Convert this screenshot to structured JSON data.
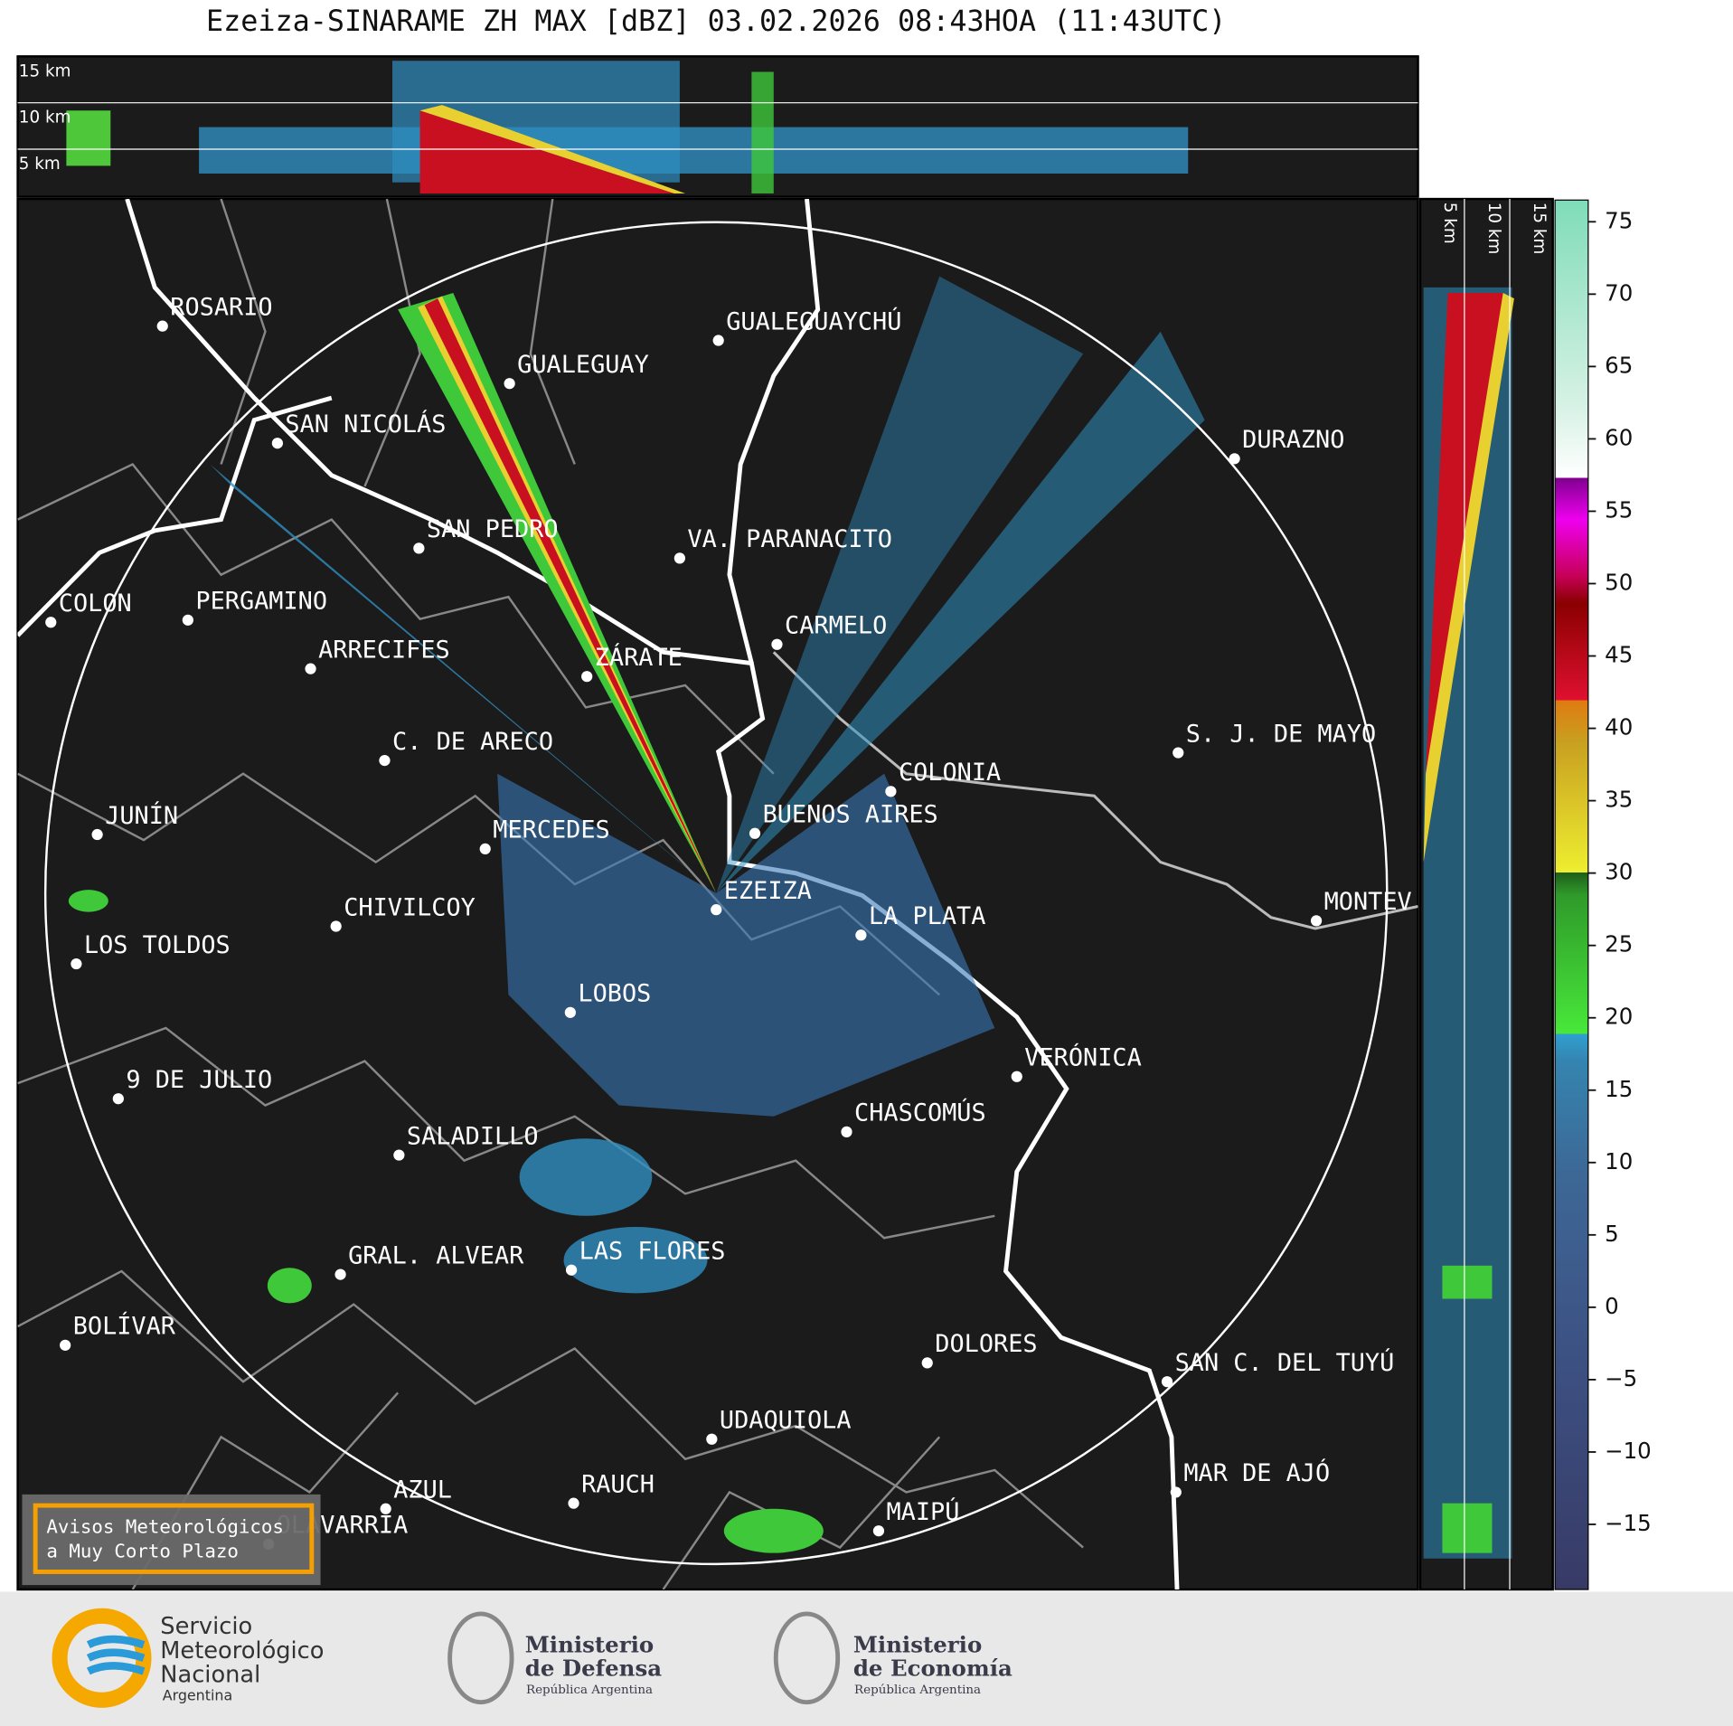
{
  "title": "Ezeiza-SINARAME ZH MAX [dBZ] 03.02.2026 08:43HOA (11:43UTC)",
  "top_panel": {
    "levels": [
      "15 km",
      "10 km",
      "5 km"
    ]
  },
  "side_panel": {
    "levels": [
      "5 km",
      "10 km",
      "15 km"
    ]
  },
  "cities": [
    "ROSARIO",
    "GUALEGUAYCHÚ",
    "GUALEGUAY",
    "SAN NICOLÁS",
    "DURAZNO",
    "SAN PEDRO",
    "VA. PARANACITO",
    "COLON",
    "PERGAMINO",
    "CARMELO",
    "ARRECIFES",
    "ZÁRATE",
    "C. DE ARECO",
    "S. J. DE MAYO",
    "COLONIA",
    "BUENOS AIRES",
    "JUNÍN",
    "MERCEDES",
    "EZEIZA",
    "CHIVILCOY",
    "MONTEV",
    "LA PLATA",
    "LOS TOLDOS",
    "LOBOS",
    "VERÓNICA",
    "9 DE JULIO",
    "CHASCOMÚS",
    "SALADILLO",
    "GRAL. ALVEAR",
    "LAS FLORES",
    "BOLÍVAR",
    "DOLORES",
    "SAN C. DEL TUYÚ",
    "UDAQUIOLA",
    "AZUL",
    "RAUCH",
    "MAR DE AJÓ",
    "OLAVARRÍA",
    "MAIPÚ"
  ],
  "warning_box": [
    "Avisos Meteorológicos",
    "a Muy Corto Plazo"
  ],
  "colorbar": {
    "lim": [
      -19.5,
      76.5
    ],
    "ticks": [
      {
        "value": -15,
        "label": "−15"
      },
      {
        "value": -10,
        "label": "−10"
      },
      {
        "value": -5,
        "label": "−5"
      },
      0,
      5,
      10,
      15,
      20,
      25,
      30,
      35,
      40,
      45,
      50,
      55,
      60,
      65,
      70,
      75
    ]
  },
  "logos": {
    "smn": [
      "Servicio",
      "Meteorológico",
      "Nacional",
      "Argentina"
    ],
    "defensa": [
      "Ministerio",
      "de Defensa",
      "República Argentina"
    ],
    "economia": [
      "Ministerio",
      "de Economía",
      "República Argentina"
    ]
  }
}
